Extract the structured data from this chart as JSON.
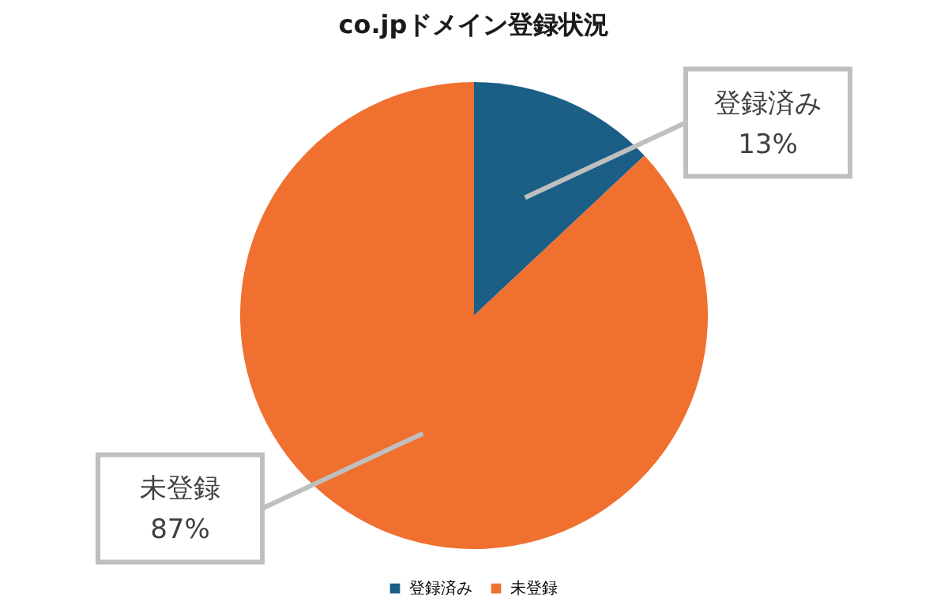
{
  "chart_data": {
    "type": "pie",
    "title": "co.jpドメイン登録状況",
    "categories": [
      "登録済み",
      "未登録"
    ],
    "values": [
      13,
      87
    ],
    "colors": [
      "#1b5e86",
      "#f07030"
    ],
    "value_labels": [
      "13%",
      "87%"
    ],
    "legend": "bottom"
  }
}
